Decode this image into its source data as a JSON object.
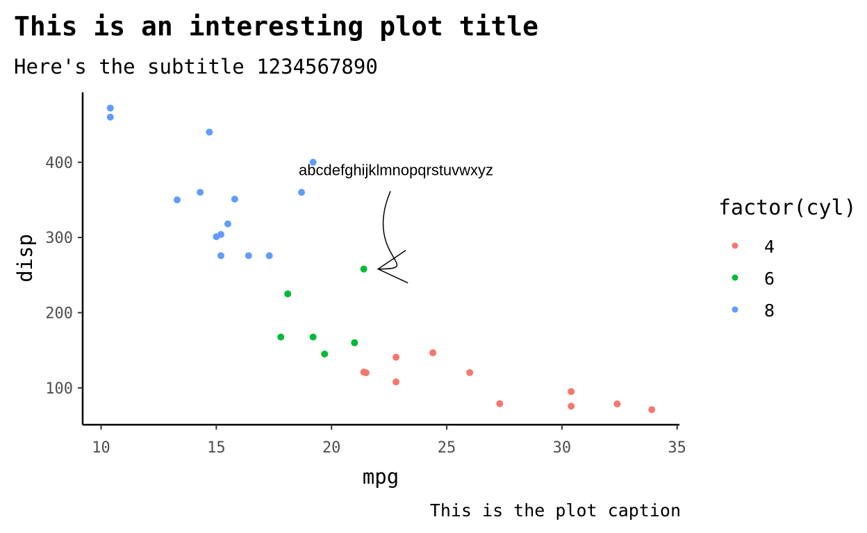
{
  "chart_data": {
    "type": "scatter",
    "title": "This is an interesting plot title",
    "subtitle": "Here's the subtitle 1234567890",
    "caption": "This is the plot caption",
    "xlabel": "mpg",
    "ylabel": "disp",
    "xlim": [
      9.2,
      35.1
    ],
    "ylim": [
      51,
      493
    ],
    "x_ticks": [
      10,
      15,
      20,
      25,
      30,
      35
    ],
    "y_ticks": [
      100,
      200,
      300,
      400
    ],
    "grid": false,
    "legend": {
      "title": "factor(cyl)",
      "position": "right",
      "entries": [
        "4",
        "6",
        "8"
      ]
    },
    "colors": {
      "4": "#F8766D",
      "6": "#00BA38",
      "8": "#619CFF"
    },
    "annotation": {
      "text": "abcdefghijklmnopqrstuvwxyz",
      "text_x": 22.8,
      "text_y": 390,
      "arrow_start": [
        22.8,
        380
      ],
      "arrow_end": [
        21.9,
        258
      ]
    },
    "series": [
      {
        "name": "4",
        "points": [
          [
            22.8,
            108
          ],
          [
            24.4,
            146.7
          ],
          [
            22.8,
            140.8
          ],
          [
            32.4,
            78.7
          ],
          [
            30.4,
            75.7
          ],
          [
            33.9,
            71.1
          ],
          [
            21.5,
            120.1
          ],
          [
            27.3,
            79
          ],
          [
            26,
            120.3
          ],
          [
            30.4,
            95.1
          ],
          [
            21.4,
            121
          ]
        ]
      },
      {
        "name": "6",
        "points": [
          [
            21,
            160
          ],
          [
            21,
            160
          ],
          [
            21.4,
            258
          ],
          [
            18.1,
            225
          ],
          [
            19.2,
            167.6
          ],
          [
            17.8,
            167.6
          ],
          [
            19.7,
            145
          ]
        ]
      },
      {
        "name": "8",
        "points": [
          [
            18.7,
            360
          ],
          [
            14.3,
            360
          ],
          [
            16.4,
            275.8
          ],
          [
            17.3,
            275.8
          ],
          [
            15.2,
            275.8
          ],
          [
            10.4,
            472
          ],
          [
            10.4,
            460
          ],
          [
            14.7,
            440
          ],
          [
            15.5,
            318
          ],
          [
            15.2,
            304
          ],
          [
            13.3,
            350
          ],
          [
            19.2,
            400
          ],
          [
            15.8,
            351
          ],
          [
            15,
            301
          ]
        ]
      }
    ]
  }
}
